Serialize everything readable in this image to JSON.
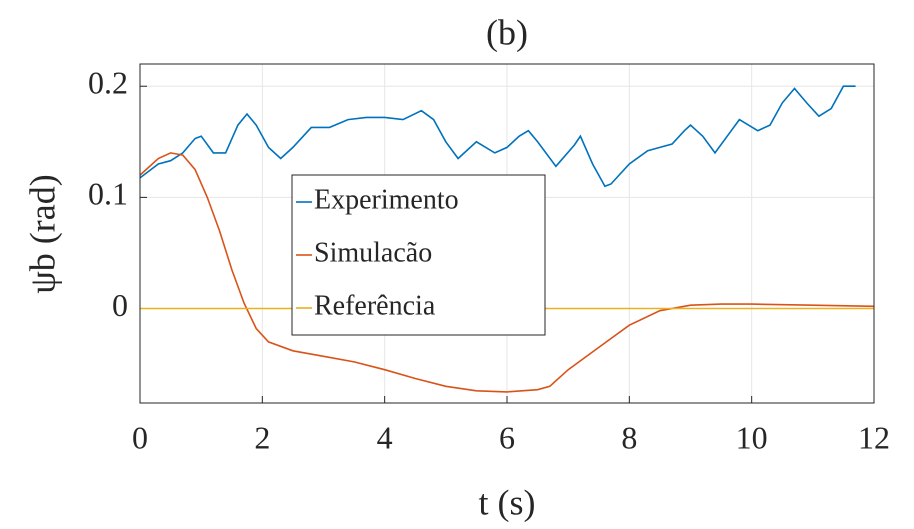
{
  "chart_data": {
    "type": "line",
    "title": "(b)",
    "xlabel": "t (s)",
    "ylabel": "ψb (rad)",
    "xlim": [
      0,
      12
    ],
    "xticks": [
      0,
      2,
      4,
      6,
      8,
      10,
      12
    ],
    "ylim": [
      -0.085,
      0.22
    ],
    "yticks": [
      0,
      0.1,
      0.2
    ],
    "grid": true,
    "legend": "center",
    "series": [
      {
        "name": "Experimento",
        "color": "#0072bd",
        "x": [
          0,
          0.3,
          0.5,
          0.7,
          0.9,
          1.0,
          1.2,
          1.4,
          1.6,
          1.75,
          1.9,
          2.1,
          2.3,
          2.5,
          2.8,
          3.1,
          3.4,
          3.7,
          4.0,
          4.3,
          4.6,
          4.8,
          5.0,
          5.2,
          5.5,
          5.8,
          6.0,
          6.2,
          6.35,
          6.5,
          6.8,
          7.1,
          7.2,
          7.4,
          7.6,
          7.7,
          8.0,
          8.3,
          8.5,
          8.7,
          8.9,
          9.0,
          9.2,
          9.4,
          9.6,
          9.8,
          10.1,
          10.3,
          10.5,
          10.7,
          10.9,
          11.1,
          11.3,
          11.5,
          11.7
        ],
        "values": [
          0.1175,
          0.13,
          0.133,
          0.14,
          0.153,
          0.155,
          0.14,
          0.14,
          0.165,
          0.175,
          0.165,
          0.145,
          0.135,
          0.145,
          0.163,
          0.163,
          0.17,
          0.172,
          0.172,
          0.17,
          0.178,
          0.17,
          0.15,
          0.135,
          0.15,
          0.14,
          0.145,
          0.155,
          0.16,
          0.15,
          0.128,
          0.147,
          0.155,
          0.13,
          0.11,
          0.112,
          0.13,
          0.142,
          0.145,
          0.148,
          0.16,
          0.165,
          0.155,
          0.14,
          0.155,
          0.17,
          0.16,
          0.165,
          0.185,
          0.198,
          0.185,
          0.173,
          0.18,
          0.2,
          0.2
        ]
      },
      {
        "name": "Simulacão",
        "color": "#d95319",
        "x": [
          0,
          0.3,
          0.5,
          0.7,
          0.9,
          1.1,
          1.3,
          1.5,
          1.7,
          1.9,
          2.1,
          2.5,
          3,
          3.5,
          4,
          4.5,
          5,
          5.5,
          6,
          6.5,
          6.7,
          7,
          7.5,
          8,
          8.5,
          9,
          9.5,
          10,
          11,
          12
        ],
        "values": [
          0.12,
          0.135,
          0.14,
          0.138,
          0.125,
          0.1,
          0.07,
          0.035,
          0.005,
          -0.018,
          -0.03,
          -0.038,
          -0.043,
          -0.048,
          -0.055,
          -0.063,
          -0.07,
          -0.074,
          -0.075,
          -0.073,
          -0.07,
          -0.055,
          -0.035,
          -0.015,
          -0.002,
          0.003,
          0.004,
          0.004,
          0.003,
          0.002
        ]
      },
      {
        "name": "Referência",
        "color": "#edb120",
        "x": [
          0,
          12
        ],
        "values": [
          0,
          0
        ]
      }
    ]
  }
}
